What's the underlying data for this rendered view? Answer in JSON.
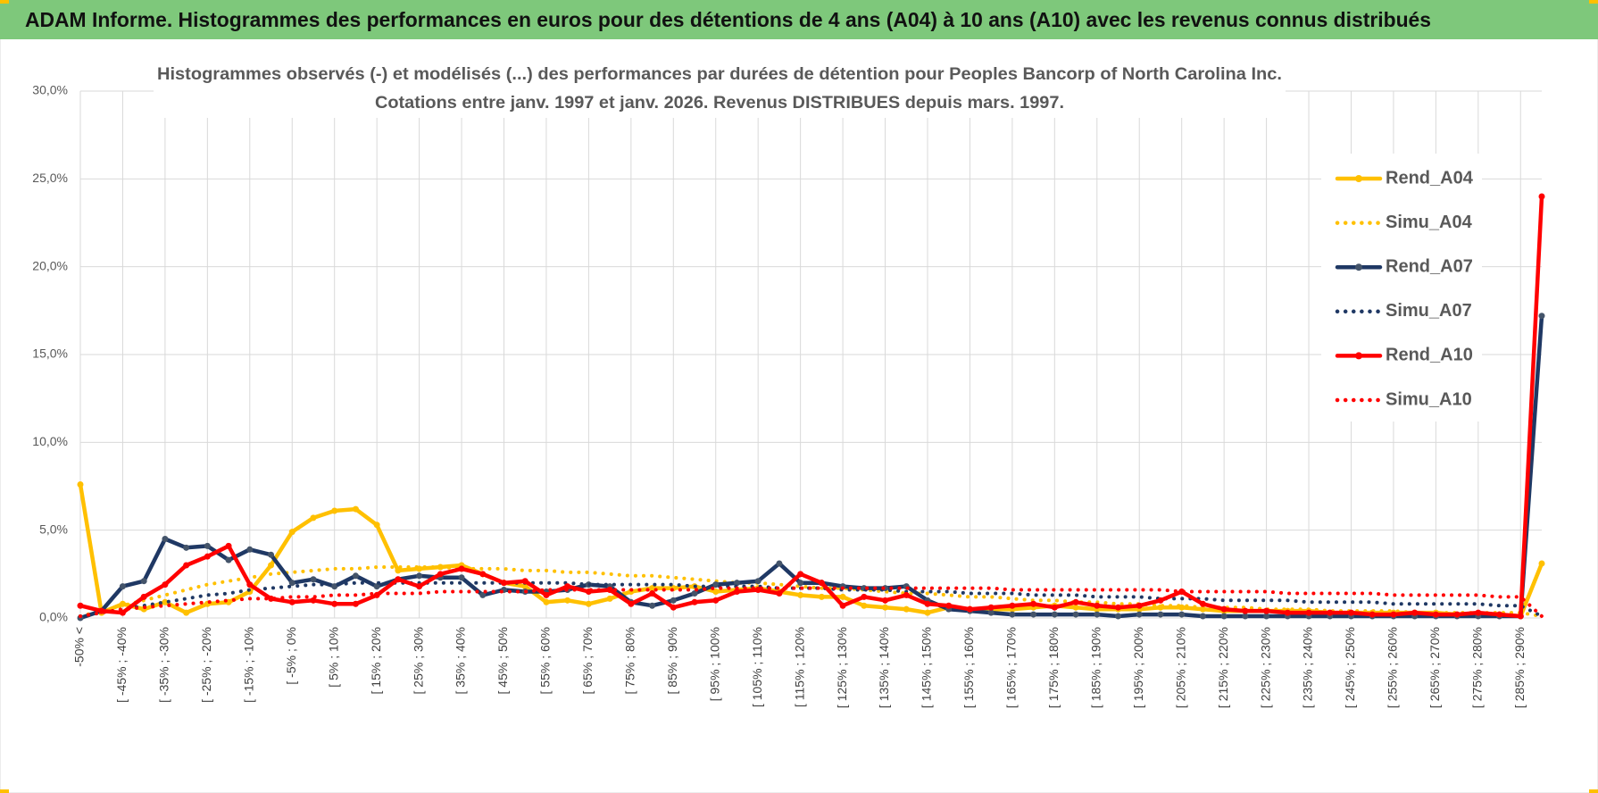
{
  "chart_data": {
    "type": "line",
    "title": "ADAM Informe. Histogrammes des performances en euros pour des détentions de 4 ans (A04) à 10 ans (A10) avec les revenus connus distribués",
    "subtitle": [
      "Histogrammes observés (-) et modélisés (...) des performances par durées de détention pour Peoples Bancorp of North Carolina Inc.",
      "Cotations entre janv. 1997 et janv. 2026. Revenus DISTRIBUES depuis mars. 1997."
    ],
    "categories": [
      "-50% <",
      null,
      "[ -45% ; -40%",
      null,
      "[ -35% ; -30%",
      null,
      "[ -25% ; -20%",
      null,
      "[ -15% ; -10%",
      null,
      "[ -5% ; 0%",
      null,
      "[ 5% ; 10%",
      null,
      "[ 15% ; 20%",
      null,
      "[ 25% ; 30%",
      null,
      "[ 35% ; 40%",
      null,
      "[ 45% ; 50%",
      null,
      "[ 55% ; 60%",
      null,
      "[ 65% ; 70%",
      null,
      "[ 75% ; 80%",
      null,
      "[ 85% ; 90%",
      null,
      "[ 95% ; 100%",
      null,
      "[ 105% ; 110%",
      null,
      "[ 115% ; 120%",
      null,
      "[ 125% ; 130%",
      null,
      "[ 135% ; 140%",
      null,
      "[ 145% ; 150%",
      null,
      "[ 155% ; 160%",
      null,
      "[ 165% ; 170%",
      null,
      "[ 175% ; 180%",
      null,
      "[ 185% ; 190%",
      null,
      "[ 195% ; 200%",
      null,
      "[ 205% ; 210%",
      null,
      "[ 215% ; 220%",
      null,
      "[ 225% ; 230%",
      null,
      "[ 235% ; 240%",
      null,
      "[ 245% ; 250%",
      null,
      "[ 255% ; 260%",
      null,
      "[ 265% ; 270%",
      null,
      "[ 275% ; 280%",
      null,
      "[ 285% ; 290%",
      null
    ],
    "series": [
      {
        "name": "Rend_A04",
        "color": "#ffc000",
        "line_style": "solid",
        "markers": true,
        "values": [
          7.6,
          0.3,
          0.8,
          0.5,
          0.9,
          0.3,
          0.8,
          0.9,
          1.5,
          3.0,
          4.9,
          5.7,
          6.1,
          6.2,
          5.3,
          2.7,
          2.8,
          2.9,
          3.0,
          2.5,
          2.0,
          1.8,
          0.9,
          1.0,
          0.8,
          1.1,
          1.5,
          1.7,
          1.7,
          1.8,
          1.5,
          1.6,
          1.7,
          1.5,
          1.3,
          1.2,
          1.2,
          0.7,
          0.6,
          0.5,
          0.3,
          0.6,
          0.5,
          0.5,
          0.5,
          0.6,
          0.7,
          0.6,
          0.5,
          0.5,
          0.5,
          0.6,
          0.6,
          0.5,
          0.4,
          0.4,
          0.4,
          0.4,
          0.4,
          0.3,
          0.3,
          0.3,
          0.3,
          0.3,
          0.3,
          0.2,
          0.2,
          0.2,
          0.1,
          3.1
        ]
      },
      {
        "name": "Simu_A04",
        "color": "#ffc000",
        "line_style": "dotted",
        "markers": false,
        "values": [
          0.1,
          0.4,
          0.7,
          1.0,
          1.3,
          1.6,
          1.9,
          2.1,
          2.3,
          2.5,
          2.6,
          2.7,
          2.8,
          2.8,
          2.9,
          2.9,
          2.9,
          2.9,
          2.8,
          2.8,
          2.8,
          2.7,
          2.7,
          2.6,
          2.6,
          2.5,
          2.4,
          2.4,
          2.3,
          2.2,
          2.1,
          2.0,
          2.0,
          1.9,
          1.8,
          1.7,
          1.7,
          1.6,
          1.5,
          1.4,
          1.4,
          1.3,
          1.2,
          1.2,
          1.1,
          1.0,
          1.0,
          0.9,
          0.9,
          0.8,
          0.8,
          0.7,
          0.7,
          0.6,
          0.6,
          0.6,
          0.5,
          0.5,
          0.5,
          0.4,
          0.4,
          0.4,
          0.4,
          0.3,
          0.3,
          0.3,
          0.3,
          0.3,
          0.3,
          0.1
        ]
      },
      {
        "name": "Rend_A07",
        "color": "#1f3864",
        "line_style": "solid",
        "markers": true,
        "values": [
          0.0,
          0.4,
          1.8,
          2.1,
          4.5,
          4.0,
          4.1,
          3.3,
          3.9,
          3.6,
          2.0,
          2.2,
          1.8,
          2.4,
          1.8,
          2.2,
          2.4,
          2.3,
          2.3,
          1.3,
          1.6,
          1.5,
          1.5,
          1.6,
          1.9,
          1.8,
          0.9,
          0.7,
          1.0,
          1.4,
          1.9,
          2.0,
          2.1,
          3.1,
          2.0,
          2.0,
          1.8,
          1.7,
          1.7,
          1.8,
          1.0,
          0.5,
          0.4,
          0.3,
          0.2,
          0.2,
          0.2,
          0.2,
          0.2,
          0.1,
          0.2,
          0.2,
          0.2,
          0.1,
          0.1,
          0.1,
          0.1,
          0.1,
          0.1,
          0.1,
          0.1,
          0.1,
          0.1,
          0.1,
          0.1,
          0.1,
          0.1,
          0.1,
          0.1,
          17.2
        ]
      },
      {
        "name": "Simu_A07",
        "color": "#1f3864",
        "line_style": "dotted",
        "markers": false,
        "values": [
          0.1,
          0.3,
          0.5,
          0.7,
          0.9,
          1.1,
          1.3,
          1.4,
          1.6,
          1.7,
          1.8,
          1.9,
          1.9,
          2.0,
          2.0,
          2.0,
          2.0,
          2.0,
          2.0,
          2.0,
          2.0,
          2.0,
          2.0,
          2.0,
          1.9,
          1.9,
          1.9,
          1.9,
          1.9,
          1.8,
          1.8,
          1.8,
          1.8,
          1.7,
          1.7,
          1.7,
          1.6,
          1.6,
          1.6,
          1.5,
          1.5,
          1.5,
          1.4,
          1.4,
          1.4,
          1.3,
          1.3,
          1.3,
          1.2,
          1.2,
          1.2,
          1.1,
          1.1,
          1.1,
          1.0,
          1.0,
          1.0,
          1.0,
          0.9,
          0.9,
          0.9,
          0.9,
          0.8,
          0.8,
          0.8,
          0.8,
          0.8,
          0.7,
          0.7,
          0.1
        ]
      },
      {
        "name": "Rend_A10",
        "color": "#ff0000",
        "line_style": "solid",
        "markers": true,
        "values": [
          0.7,
          0.4,
          0.3,
          1.2,
          1.9,
          3.0,
          3.5,
          4.1,
          1.9,
          1.1,
          0.9,
          1.0,
          0.8,
          0.8,
          1.3,
          2.2,
          1.8,
          2.5,
          2.8,
          2.5,
          2.0,
          2.1,
          1.3,
          1.8,
          1.5,
          1.6,
          0.8,
          1.4,
          0.6,
          0.9,
          1.0,
          1.5,
          1.6,
          1.4,
          2.5,
          2.0,
          0.7,
          1.2,
          1.0,
          1.3,
          0.8,
          0.7,
          0.5,
          0.6,
          0.7,
          0.8,
          0.6,
          0.9,
          0.7,
          0.6,
          0.7,
          1.0,
          1.5,
          0.8,
          0.5,
          0.4,
          0.4,
          0.3,
          0.3,
          0.3,
          0.3,
          0.2,
          0.2,
          0.3,
          0.2,
          0.2,
          0.3,
          0.2,
          0.1,
          24.0
        ]
      },
      {
        "name": "Simu_A10",
        "color": "#ff0000",
        "line_style": "dotted",
        "markers": false,
        "values": [
          0.1,
          0.3,
          0.5,
          0.6,
          0.7,
          0.8,
          0.9,
          1.0,
          1.1,
          1.1,
          1.2,
          1.2,
          1.3,
          1.3,
          1.4,
          1.4,
          1.4,
          1.5,
          1.5,
          1.5,
          1.5,
          1.5,
          1.6,
          1.6,
          1.6,
          1.6,
          1.6,
          1.6,
          1.6,
          1.6,
          1.7,
          1.7,
          1.7,
          1.7,
          1.7,
          1.7,
          1.7,
          1.7,
          1.7,
          1.7,
          1.7,
          1.7,
          1.7,
          1.7,
          1.6,
          1.6,
          1.6,
          1.6,
          1.6,
          1.6,
          1.6,
          1.6,
          1.5,
          1.5,
          1.5,
          1.5,
          1.5,
          1.4,
          1.4,
          1.4,
          1.4,
          1.4,
          1.3,
          1.3,
          1.3,
          1.3,
          1.3,
          1.2,
          1.2,
          0.1
        ]
      }
    ],
    "ylim": [
      0,
      30
    ],
    "yticks": [
      {
        "value": 0,
        "label": "0,0%"
      },
      {
        "value": 5,
        "label": "5,0%"
      },
      {
        "value": 10,
        "label": "10,0%"
      },
      {
        "value": 15,
        "label": "15,0%"
      },
      {
        "value": 20,
        "label": "20,0%"
      },
      {
        "value": 25,
        "label": "25,0%"
      },
      {
        "value": 30,
        "label": "30,0%"
      }
    ],
    "grid": true,
    "legend": "right"
  }
}
